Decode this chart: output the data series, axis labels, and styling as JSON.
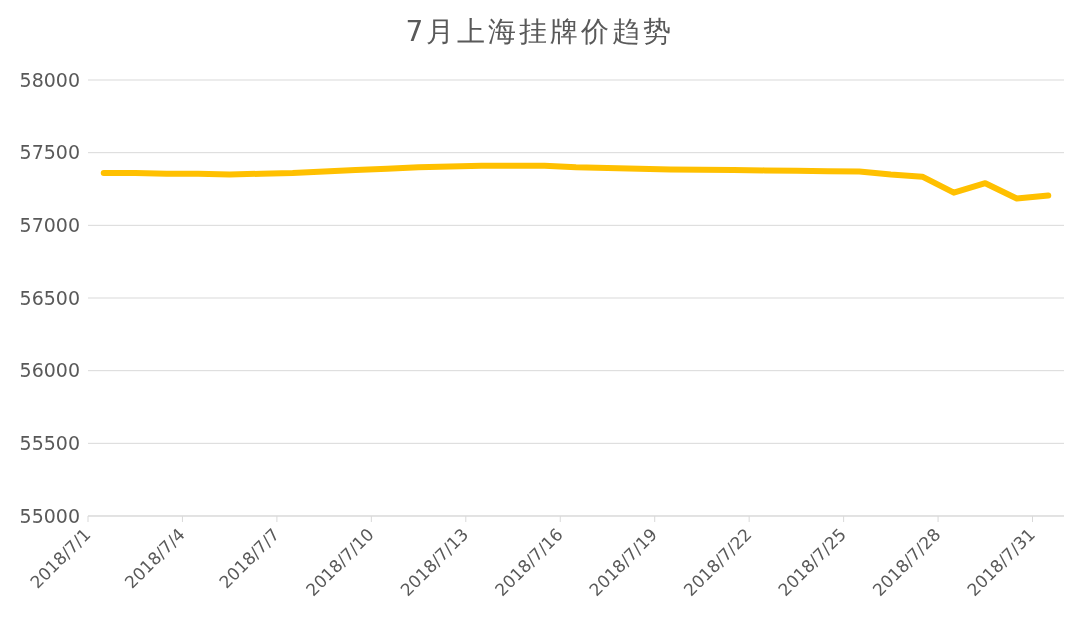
{
  "chart_data": {
    "type": "line",
    "title": "7月上海挂牌价趋势",
    "x": [
      "2018-07-01T12:00",
      "2018-07-02T12:00",
      "2018-07-03T12:00",
      "2018-07-04T12:00",
      "2018-07-05T12:00",
      "2018-07-06T12:00",
      "2018-07-07T12:00",
      "2018-07-08T12:00",
      "2018-07-09T12:00",
      "2018-07-10T12:00",
      "2018-07-11T12:00",
      "2018-07-12T12:00",
      "2018-07-13T12:00",
      "2018-07-14T12:00",
      "2018-07-15T12:00",
      "2018-07-16T12:00",
      "2018-07-17T12:00",
      "2018-07-18T12:00",
      "2018-07-19T12:00",
      "2018-07-20T12:00",
      "2018-07-21T12:00",
      "2018-07-22T12:00",
      "2018-07-23T12:00",
      "2018-07-24T12:00",
      "2018-07-25T12:00",
      "2018-07-26T12:00",
      "2018-07-27T12:00",
      "2018-07-28T12:00",
      "2018-07-29T12:00",
      "2018-07-30T12:00",
      "2018-07-31T12:00"
    ],
    "series": [
      {
        "color": "#ffc000",
        "values": [
          57360,
          57360,
          57355,
          57355,
          57350,
          57355,
          57360,
          57370,
          57380,
          57390,
          57400,
          57405,
          57410,
          57410,
          57410,
          57400,
          57395,
          57390,
          57385,
          57382,
          57380,
          57378,
          57375,
          57372,
          57370,
          57350,
          57335,
          57225,
          57290,
          57185,
          57205
        ]
      }
    ],
    "xlim": [
      "2018-07-01",
      "2018-08-01"
    ],
    "xticks": [
      {
        "value": "2018-07-01",
        "label": "2018/7/1"
      },
      {
        "value": "2018-07-04",
        "label": "2018/7/4"
      },
      {
        "value": "2018-07-07",
        "label": "2018/7/7"
      },
      {
        "value": "2018-07-10",
        "label": "2018/7/10"
      },
      {
        "value": "2018-07-13",
        "label": "2018/7/13"
      },
      {
        "value": "2018-07-16",
        "label": "2018/7/16"
      },
      {
        "value": "2018-07-19",
        "label": "2018/7/19"
      },
      {
        "value": "2018-07-22",
        "label": "2018/7/22"
      },
      {
        "value": "2018-07-25",
        "label": "2018/7/25"
      },
      {
        "value": "2018-07-28",
        "label": "2018/7/28"
      },
      {
        "value": "2018-07-31",
        "label": "2018/7/31"
      }
    ],
    "ylim": [
      55000,
      58000
    ],
    "yticks": [
      55000,
      55500,
      56000,
      56500,
      57000,
      57500,
      58000
    ],
    "grid": "y",
    "legend": false,
    "marker": "none",
    "line_style": "solid"
  }
}
